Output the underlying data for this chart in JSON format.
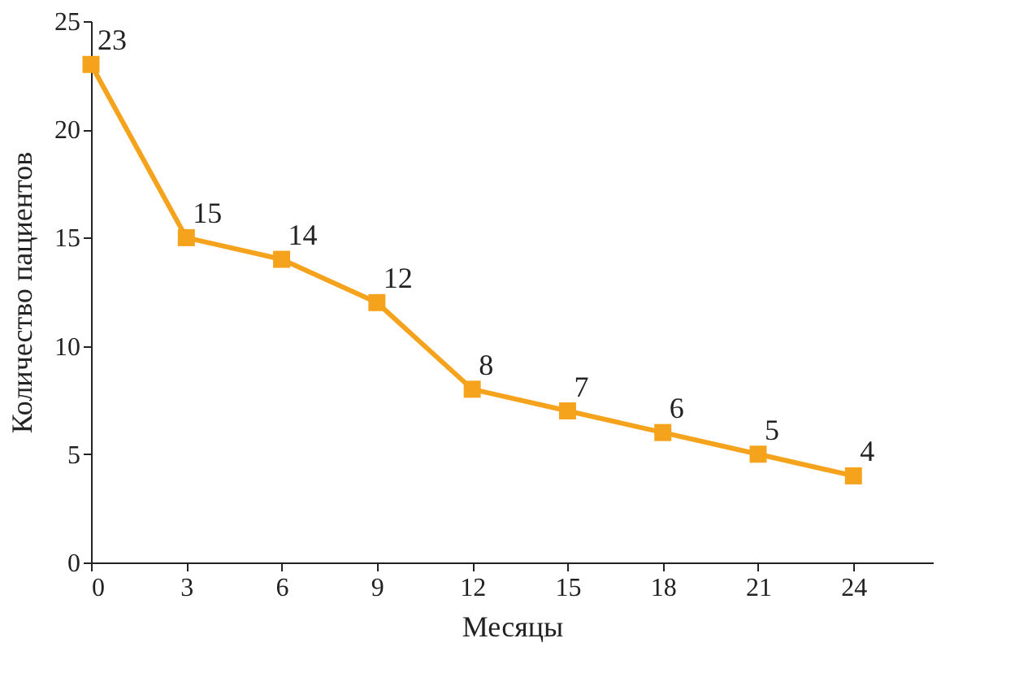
{
  "chart_data": {
    "type": "line",
    "xlabel": "Месяцы",
    "ylabel": "Количество пациентов",
    "x": [
      0,
      3,
      6,
      9,
      12,
      15,
      18,
      21,
      24
    ],
    "series": [
      {
        "color": "#f5a31c",
        "values": [
          23,
          15,
          14,
          12,
          8,
          7,
          6,
          5,
          4
        ]
      }
    ],
    "xlim": [
      0,
      26.5
    ],
    "xticks": [
      0,
      3,
      6,
      9,
      12,
      15,
      18,
      21,
      24
    ],
    "ylim": [
      0,
      25
    ],
    "yticks": [
      0,
      5,
      10,
      15,
      20,
      25
    ],
    "grid": false,
    "marker": "square",
    "line_style": "solid",
    "data_labels": true
  }
}
